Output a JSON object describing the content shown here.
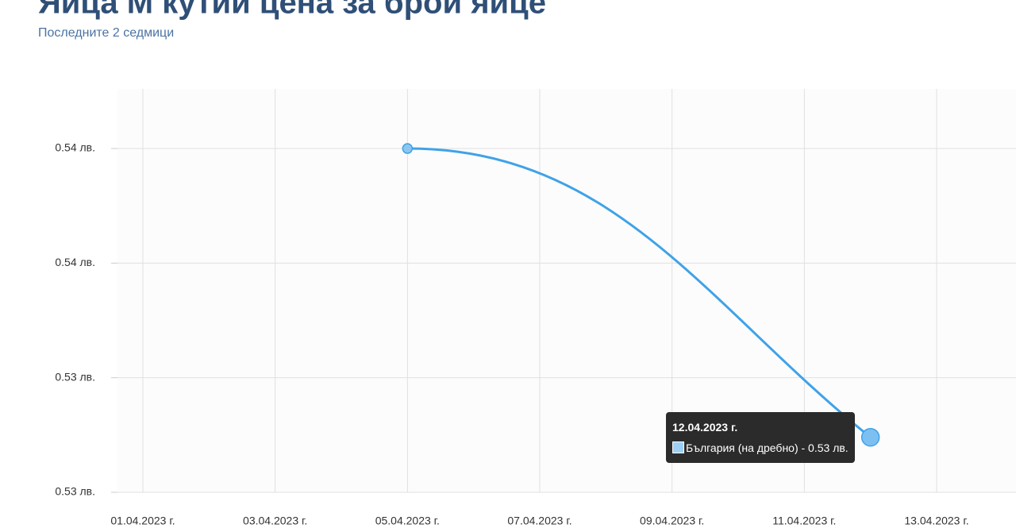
{
  "chart_data": {
    "type": "line",
    "title": "Яйца М кутии цена за брой яйце",
    "subtitle": "Последните 2 седмици",
    "x": [
      "2023-04-05",
      "2023-04-12"
    ],
    "series": [
      {
        "name": "България (на дребно)",
        "color": "#3fa2e8",
        "values": [
          0.5375,
          0.5312
        ]
      }
    ],
    "xlim": [
      "2023-03-31T14:47",
      "2023-04-14T04:48"
    ],
    "xticks": [
      {
        "value": "2023-04-01",
        "label": "01.04.2023 г."
      },
      {
        "value": "2023-04-03",
        "label": "03.04.2023 г."
      },
      {
        "value": "2023-04-05",
        "label": "05.04.2023 г."
      },
      {
        "value": "2023-04-07",
        "label": "07.04.2023 г."
      },
      {
        "value": "2023-04-09",
        "label": "09.04.2023 г."
      },
      {
        "value": "2023-04-11",
        "label": "11.04.2023 г."
      },
      {
        "value": "2023-04-13",
        "label": "13.04.2023 г."
      }
    ],
    "ylim": [
      0.53,
      0.5388
    ],
    "yticks": [
      {
        "value": 0.53,
        "label": "0.53 лв."
      },
      {
        "value": 0.5325,
        "label": "0.53 лв."
      },
      {
        "value": 0.535,
        "label": "0.54 лв."
      },
      {
        "value": 0.5375,
        "label": "0.54 лв."
      }
    ],
    "grid": true,
    "tooltip": {
      "date": "12.04.2023 г.",
      "text": "България (на дребно) - 0.53 лв."
    }
  }
}
